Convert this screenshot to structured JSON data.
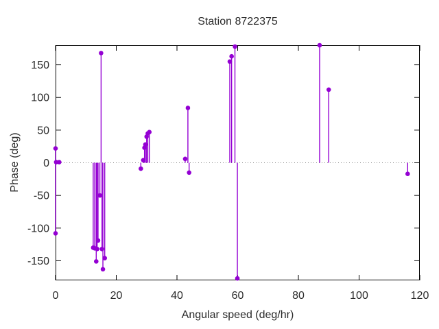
{
  "page": {
    "background": "#ffffff"
  },
  "chart_data": {
    "type": "scatter",
    "subtype": "stem-impulses-with-points",
    "title": "Station 8722375",
    "xlabel": "Angular speed (deg/hr)",
    "ylabel": "Phase (deg)",
    "xlim": [
      0,
      120
    ],
    "ylim": [
      -180,
      180
    ],
    "x_ticks": [
      0,
      20,
      40,
      60,
      80,
      100,
      120
    ],
    "y_ticks": [
      -150,
      -100,
      -50,
      0,
      50,
      100,
      150
    ],
    "grid": false,
    "legend": "none",
    "zero_line": true,
    "marker_color": "#9400d3",
    "axis_color": "#000000",
    "text_color": "#2a2a2a",
    "zero_line_color": "#808080",
    "points": [
      [
        0,
        22
      ],
      [
        0.2,
        1
      ],
      [
        1.2,
        1
      ],
      [
        0,
        -108
      ],
      [
        12.4,
        -130
      ],
      [
        12.9,
        -131
      ],
      [
        13.4,
        -151
      ],
      [
        13.7,
        -132
      ],
      [
        14.0,
        -119
      ],
      [
        14.6,
        -50
      ],
      [
        15.0,
        168
      ],
      [
        15.3,
        -132
      ],
      [
        15.6,
        -163
      ],
      [
        16.2,
        -146
      ],
      [
        28.1,
        -9
      ],
      [
        28.9,
        4
      ],
      [
        29.3,
        23
      ],
      [
        29.6,
        28
      ],
      [
        30.0,
        40
      ],
      [
        30.4,
        45
      ],
      [
        30.9,
        47
      ],
      [
        42.7,
        6
      ],
      [
        43.6,
        84
      ],
      [
        44.0,
        -15
      ],
      [
        57.4,
        155
      ],
      [
        58.0,
        163
      ],
      [
        59.1,
        178
      ],
      [
        59.9,
        -177
      ],
      [
        87,
        180
      ],
      [
        90,
        112
      ],
      [
        116,
        -17
      ]
    ]
  }
}
